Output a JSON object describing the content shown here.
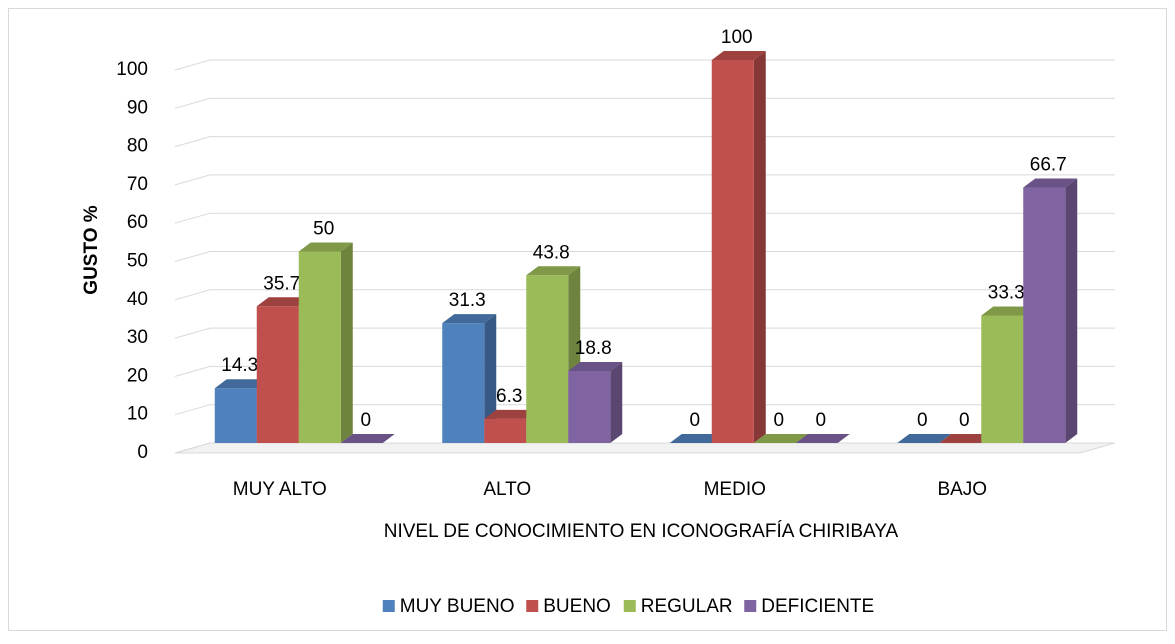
{
  "chart_data": {
    "type": "bar3d",
    "x_label": "NIVEL DE CONOCIMIENTO EN ICONOGRAFÍA CHIRIBAYA",
    "y_label": "GUSTO %",
    "categories": [
      "MUY ALTO",
      "ALTO",
      "MEDIO",
      "BAJO"
    ],
    "series": [
      {
        "name": "MUY BUENO",
        "color": "#4f81bd",
        "values": [
          14.3,
          31.3,
          0,
          0
        ]
      },
      {
        "name": "BUENO",
        "color": "#c0504d",
        "values": [
          35.7,
          6.3,
          100,
          0
        ]
      },
      {
        "name": "REGULAR",
        "color": "#9bbb59",
        "values": [
          50,
          43.8,
          0,
          33.3
        ]
      },
      {
        "name": "DEFICIENTE",
        "color": "#8064a2",
        "values": [
          0,
          18.8,
          0,
          66.7
        ]
      }
    ],
    "ylim": [
      0,
      100
    ],
    "yticks": [
      0,
      10,
      20,
      30,
      40,
      50,
      60,
      70,
      80,
      90,
      100
    ],
    "grid": true,
    "legend": "bottom"
  }
}
